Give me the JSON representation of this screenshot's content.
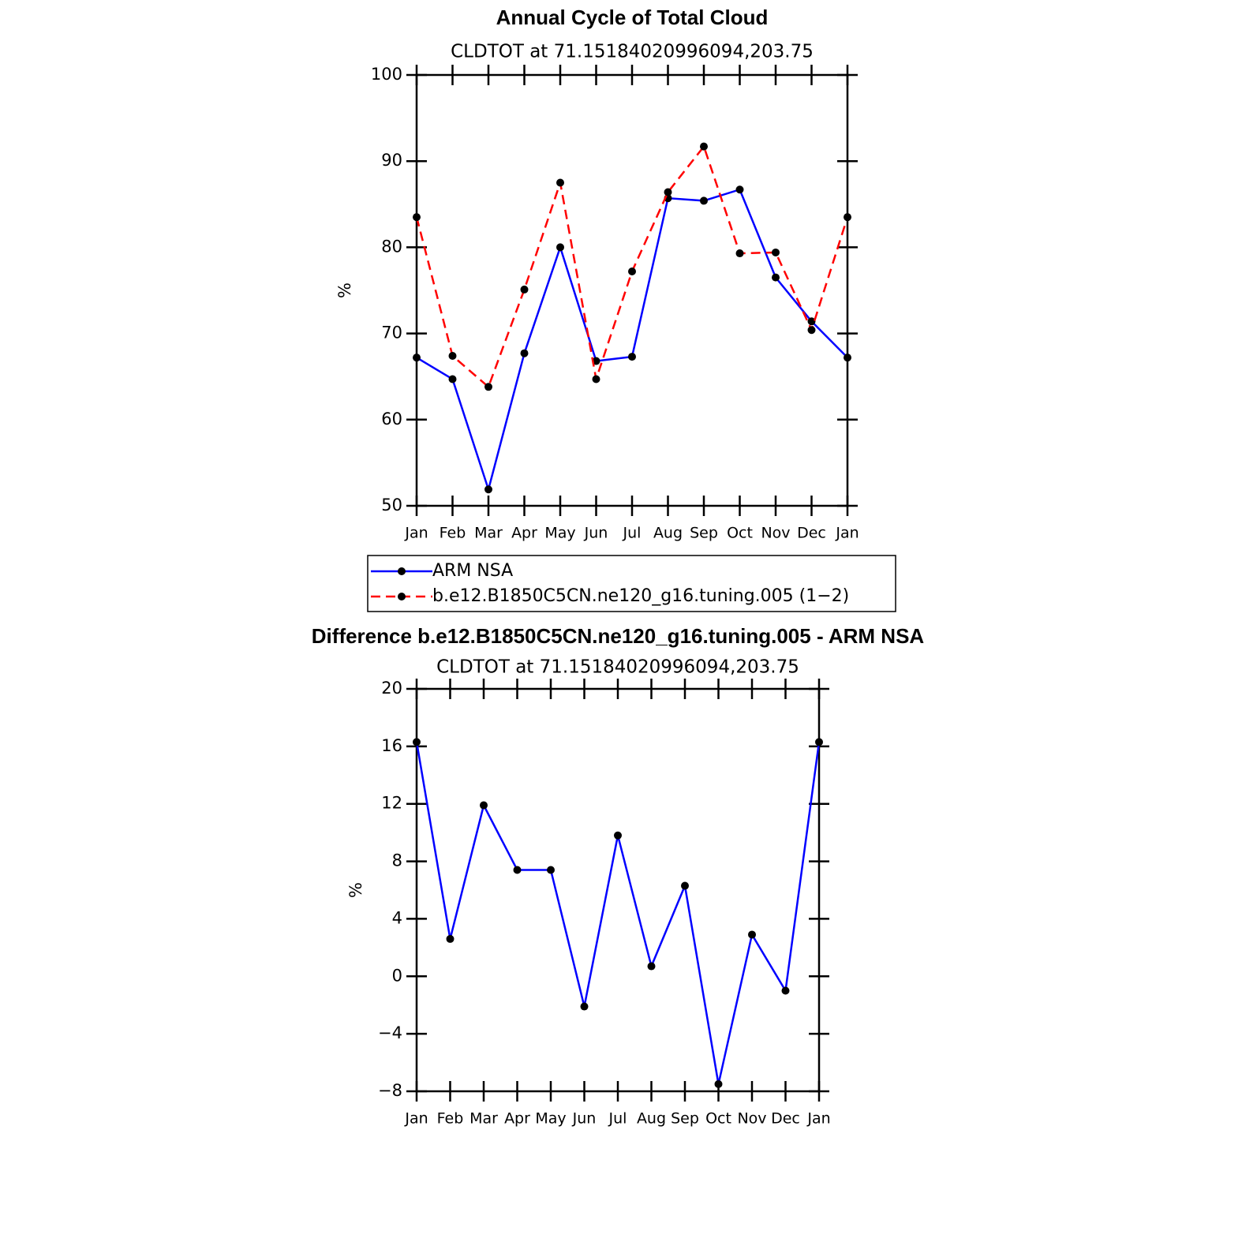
{
  "chart_data": [
    {
      "type": "line",
      "title": "Annual Cycle of Total Cloud",
      "subtitle": "CLDTOT at 71.15184020996094,203.75",
      "ylabel": "%",
      "categories": [
        "Jan",
        "Feb",
        "Mar",
        "Apr",
        "May",
        "Jun",
        "Jul",
        "Aug",
        "Sep",
        "Oct",
        "Nov",
        "Dec",
        "Jan"
      ],
      "ylim": [
        50,
        100
      ],
      "yticks": [
        50,
        60,
        70,
        80,
        90,
        100
      ],
      "series": [
        {
          "name": "ARM NSA",
          "color": "#0000ff",
          "dash": "solid",
          "values": [
            67.2,
            64.7,
            51.9,
            67.7,
            80.0,
            66.8,
            67.3,
            85.7,
            85.4,
            86.7,
            76.5,
            71.4,
            67.2
          ]
        },
        {
          "name": "b.e12.B1850C5CN.ne120_g16.tuning.005 (1−2)",
          "color": "#ff0000",
          "dash": "dashed",
          "values": [
            83.5,
            67.4,
            63.8,
            75.1,
            87.5,
            64.7,
            77.2,
            86.4,
            91.7,
            79.3,
            79.4,
            70.4,
            83.5
          ]
        }
      ]
    },
    {
      "type": "line",
      "title": "Difference b.e12.B1850C5CN.ne120_g16.tuning.005 - ARM NSA",
      "subtitle": "CLDTOT at 71.15184020996094,203.75",
      "ylabel": "%",
      "categories": [
        "Jan",
        "Feb",
        "Mar",
        "Apr",
        "May",
        "Jun",
        "Jul",
        "Aug",
        "Sep",
        "Oct",
        "Nov",
        "Dec",
        "Jan"
      ],
      "ylim": [
        -8,
        20
      ],
      "yticks": [
        {
          "value": -8,
          "label": "−8"
        },
        {
          "value": -4,
          "label": "−4"
        },
        0,
        4,
        8,
        12,
        16,
        20
      ],
      "color": "#0000ff",
      "values": [
        16.3,
        2.6,
        11.9,
        7.4,
        7.4,
        -2.1,
        9.8,
        0.7,
        6.3,
        -7.5,
        2.9,
        -1.0,
        16.3
      ]
    }
  ]
}
